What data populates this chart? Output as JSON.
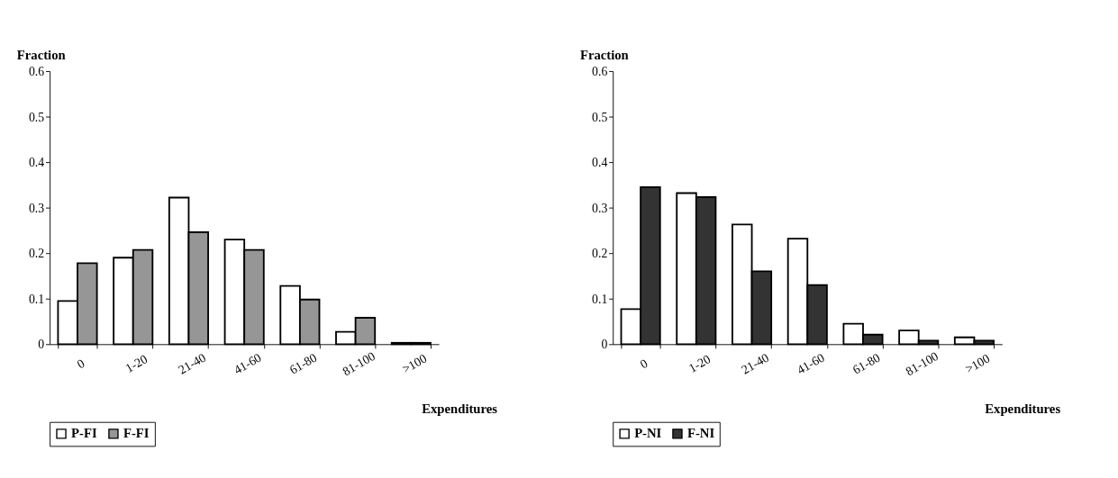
{
  "chart_data": [
    {
      "type": "bar",
      "ylabel": "Fraction",
      "xlabel": "Expenditures",
      "categories": [
        "0",
        "1-20",
        "21-40",
        "41-60",
        "61-80",
        "81-100",
        ">100"
      ],
      "ylim": [
        0,
        0.6
      ],
      "yticks": [
        0,
        0.1,
        0.2,
        0.3,
        0.4,
        0.5,
        0.6
      ],
      "legend": "bottom",
      "grid": false,
      "series": [
        {
          "name": "P-FI",
          "color": "#ffffff",
          "values": [
            0.095,
            0.19,
            0.322,
            0.23,
            0.128,
            0.027,
            0.003
          ]
        },
        {
          "name": "F-FI",
          "color": "#969696",
          "values": [
            0.178,
            0.207,
            0.246,
            0.207,
            0.098,
            0.058,
            0.003
          ]
        }
      ]
    },
    {
      "type": "bar",
      "ylabel": "Fraction",
      "xlabel": "Expenditures",
      "categories": [
        "0",
        "1-20",
        "21-40",
        "41-60",
        "61-80",
        "81-100",
        ">100"
      ],
      "ylim": [
        0,
        0.6
      ],
      "yticks": [
        0,
        0.1,
        0.2,
        0.3,
        0.4,
        0.5,
        0.6
      ],
      "legend": "bottom",
      "grid": false,
      "series": [
        {
          "name": "P-NI",
          "color": "#ffffff",
          "values": [
            0.077,
            0.332,
            0.263,
            0.232,
            0.045,
            0.03,
            0.015
          ]
        },
        {
          "name": "F-NI",
          "color": "#333333",
          "values": [
            0.345,
            0.323,
            0.16,
            0.13,
            0.021,
            0.008,
            0.008
          ]
        }
      ]
    }
  ]
}
